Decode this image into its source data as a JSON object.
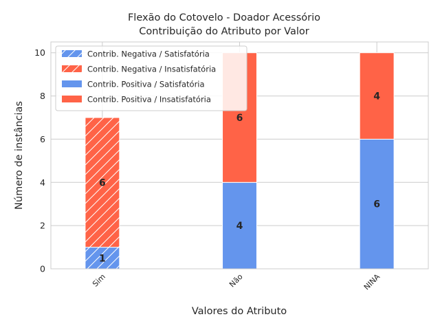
{
  "chart_data": {
    "type": "bar",
    "stacked": true,
    "title": "Flexão do Cotovelo - Doador Acessório",
    "subtitle": "Contribuição do Atributo por Valor",
    "xlabel": "Valores do Atributo",
    "ylabel": "Número de instâncias",
    "categories": [
      "Sim",
      "Não",
      "NINA"
    ],
    "ylim": [
      0,
      10.5
    ],
    "yticks": [
      0,
      2,
      4,
      6,
      8,
      10
    ],
    "grid": true,
    "legend_position": "top-left",
    "series": [
      {
        "name": "Contrib. Negativa / Satisfatória",
        "values": [
          1,
          0,
          0
        ],
        "color": "#6495ED",
        "hatch": true
      },
      {
        "name": "Contrib. Negativa / Insatisfatória",
        "values": [
          6,
          0,
          0
        ],
        "color": "#FF6347",
        "hatch": true
      },
      {
        "name": "Contrib. Positiva / Satisfatória",
        "values": [
          0,
          4,
          6
        ],
        "color": "#6495ED",
        "hatch": false
      },
      {
        "name": "Contrib. Positiva / Insatisfatória",
        "values": [
          0,
          6,
          4
        ],
        "color": "#FF6347",
        "hatch": false
      }
    ]
  }
}
